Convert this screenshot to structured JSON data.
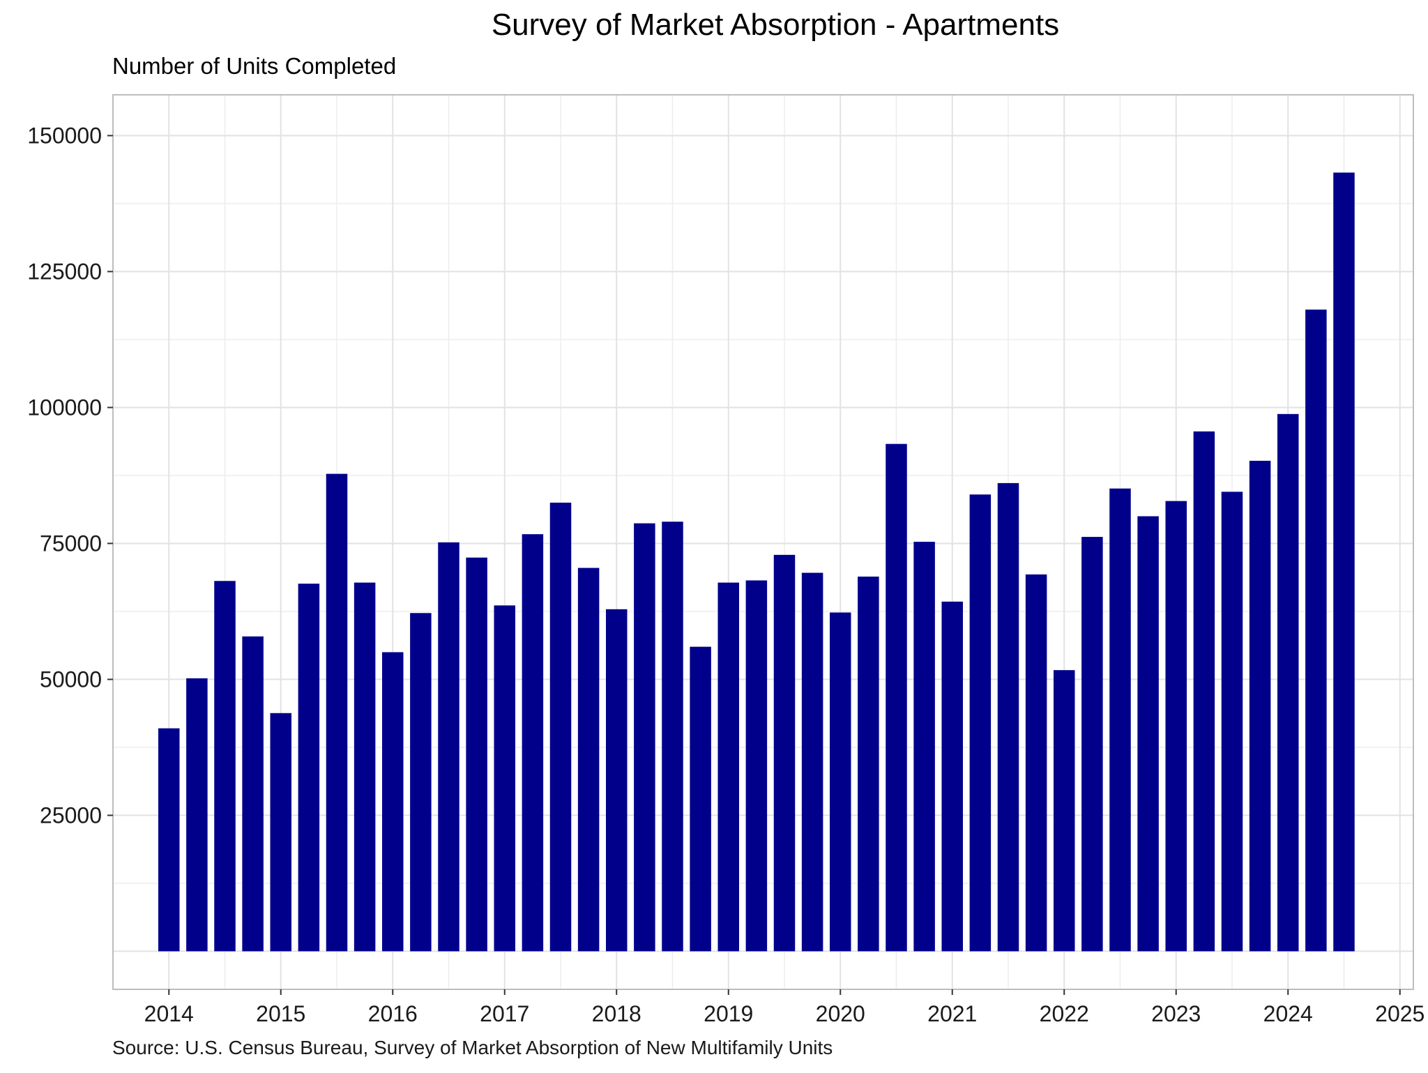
{
  "chart_data": {
    "type": "bar",
    "title": "Survey of Market Absorption - Apartments",
    "subtitle": "Number of Units Completed",
    "caption": "Source: U.S. Census Bureau, Survey of Market Absorption of New Multifamily Units",
    "xlabel": "",
    "ylabel": "",
    "x_ticks": [
      "2014",
      "2015",
      "2016",
      "2017",
      "2018",
      "2019",
      "2020",
      "2021",
      "2022",
      "2023",
      "2024",
      "2025"
    ],
    "y_ticks": [
      "25000",
      "50000",
      "75000",
      "100000",
      "125000",
      "150000"
    ],
    "xlim": [
      2013.5,
      2025.12
    ],
    "ylim": [
      -7000,
      157500
    ],
    "grid": true,
    "bar_color": "#00008B",
    "x": [
      2014.0,
      2014.25,
      2014.5,
      2014.75,
      2015.0,
      2015.25,
      2015.5,
      2015.75,
      2016.0,
      2016.25,
      2016.5,
      2016.75,
      2017.0,
      2017.25,
      2017.5,
      2017.75,
      2018.0,
      2018.25,
      2018.5,
      2018.75,
      2019.0,
      2019.25,
      2019.5,
      2019.75,
      2020.0,
      2020.25,
      2020.5,
      2020.75,
      2021.0,
      2021.25,
      2021.5,
      2021.75,
      2022.0,
      2022.25,
      2022.5,
      2022.75,
      2023.0,
      2023.25,
      2023.5,
      2023.75,
      2024.0,
      2024.25,
      2024.5
    ],
    "values": [
      41000,
      50200,
      68100,
      57900,
      43800,
      67600,
      87800,
      67800,
      55000,
      62200,
      75200,
      72400,
      63600,
      76700,
      82500,
      70500,
      62900,
      78700,
      79000,
      56000,
      67800,
      68200,
      72900,
      69600,
      62300,
      68900,
      93300,
      75300,
      64300,
      84000,
      86100,
      69300,
      51700,
      76200,
      85100,
      80000,
      82800,
      95600,
      84500,
      90200,
      98800,
      118000,
      143200
    ]
  }
}
